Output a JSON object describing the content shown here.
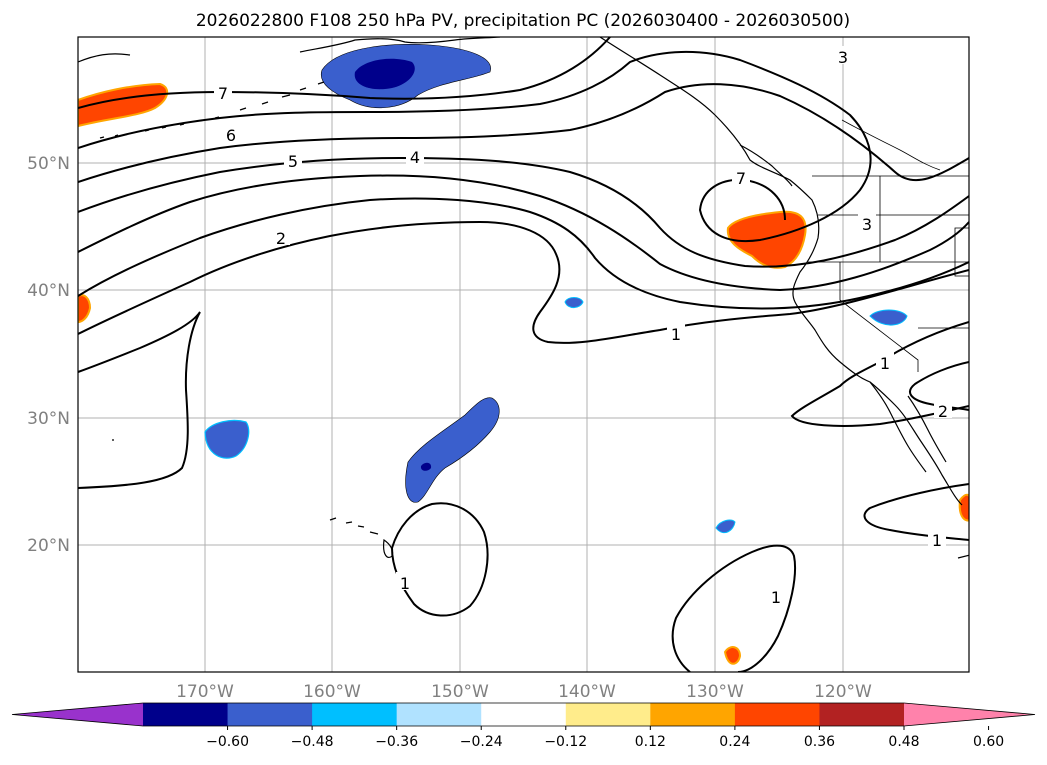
{
  "title": "2026022800 F108 250 hPa PV, precipitation PC (2026030400 - 2026030500)",
  "lon_labels": [
    "170°W",
    "160°W",
    "150°W",
    "140°W",
    "130°W",
    "120°W"
  ],
  "lat_labels": [
    "50°N",
    "40°N",
    "30°N",
    "20°N"
  ],
  "colorbar": {
    "ticks": [
      "−0.60",
      "−0.48",
      "−0.36",
      "−0.24",
      "−0.12",
      "0.12",
      "0.24",
      "0.36",
      "0.48",
      "0.60"
    ],
    "colors": [
      "#9932cc",
      "#00008b",
      "#3a5fcd",
      "#00bfff",
      "#b0e2ff",
      "#ffffff",
      "#ffec8b",
      "#ffa500",
      "#ff4500",
      "#b22222",
      "#ff82ab"
    ]
  },
  "contour_labels": [
    "7",
    "6",
    "5",
    "4",
    "2",
    "1",
    "7",
    "3",
    "1",
    "2",
    "1",
    "1",
    "3",
    "1"
  ],
  "shading": {
    "negative": "#3a5fcd",
    "strong_negative": "#00008b",
    "light_negative": "#00bfff",
    "positive": "#ff4500",
    "light_positive": "#ffa500"
  }
}
